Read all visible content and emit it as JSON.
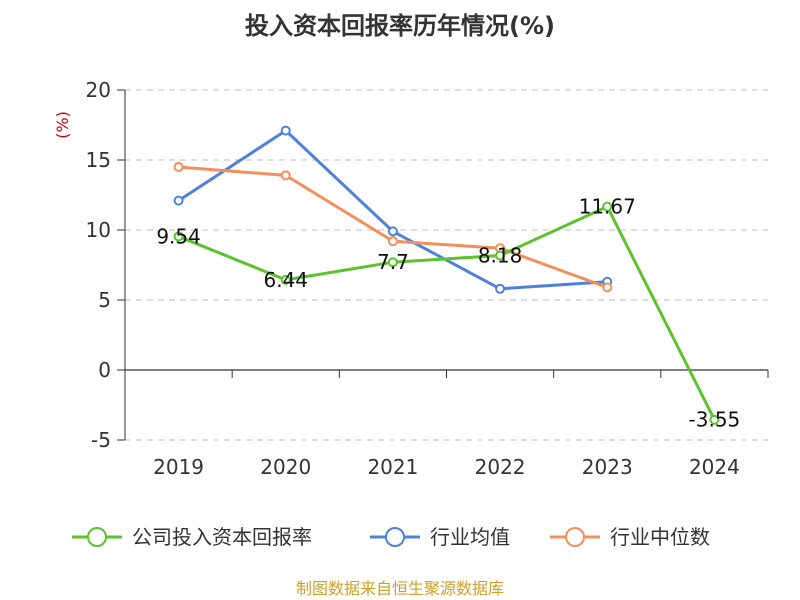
{
  "chart_data": {
    "type": "line",
    "title": "投入资本回报率历年情况(%)",
    "ylabel": "(%)",
    "categories": [
      "2019",
      "2020",
      "2021",
      "2022",
      "2023",
      "2024"
    ],
    "ylim": [
      -5,
      20
    ],
    "yticks": [
      "-5",
      "0",
      "5",
      "10",
      "15",
      "20"
    ],
    "grid": true,
    "legend_position": "bottom",
    "series": [
      {
        "name": "公司投入资本回报率",
        "color": "#5cc22e",
        "values": [
          9.54,
          6.44,
          7.7,
          8.18,
          11.67,
          -3.55
        ],
        "labels": [
          "9.54",
          "6.44",
          "7.7",
          "8.18",
          "11.67",
          "-3.55"
        ]
      },
      {
        "name": "行业均值",
        "color": "#4f81d8",
        "values": [
          12.1,
          17.1,
          9.9,
          5.8,
          6.3,
          null
        ]
      },
      {
        "name": "行业中位数",
        "color": "#f28f5c",
        "values": [
          14.5,
          13.9,
          9.2,
          8.7,
          5.9,
          null
        ]
      }
    ]
  },
  "footer": {
    "source": "制图数据来自恒生聚源数据库"
  }
}
